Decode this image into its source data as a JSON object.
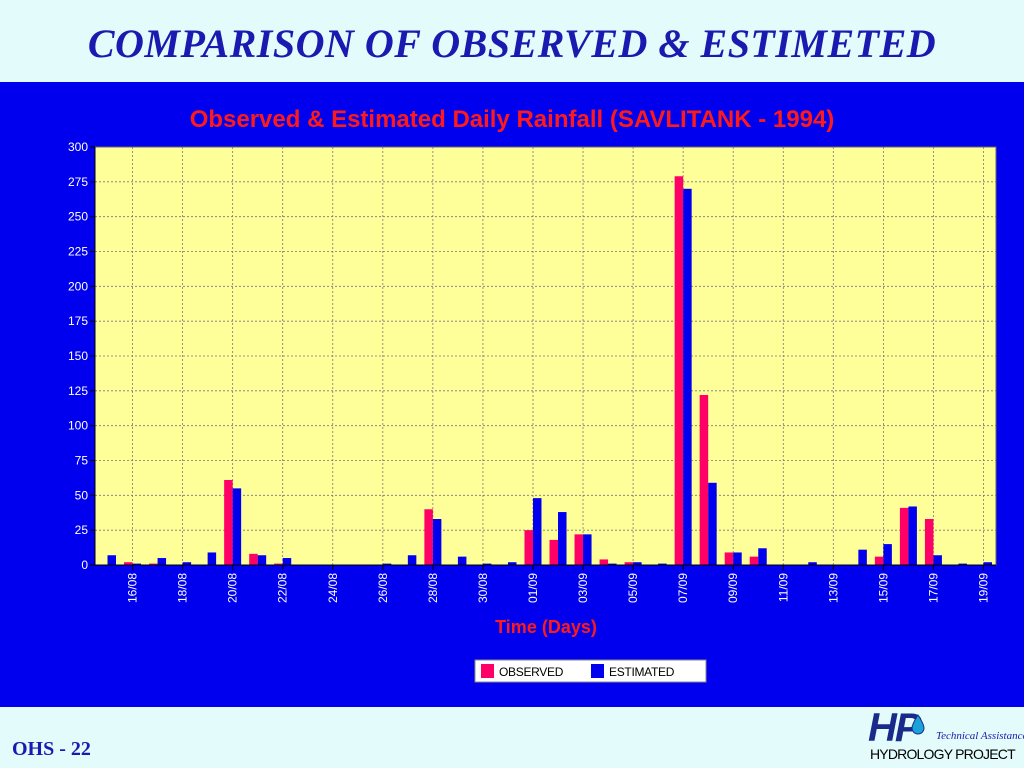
{
  "slide": {
    "title": "COMPARISON OF OBSERVED & ESTIMETED",
    "footer": "OHS - 22",
    "logo": {
      "mark": "HP",
      "tagline": "Technical Assistance",
      "name": "HYDROLOGY PROJECT"
    }
  },
  "colors": {
    "background": "#e3fbfb",
    "panel": "#0000ee",
    "plot_area": "#ffff99",
    "title_text": "#ff1a1a",
    "observed": "#ff0066",
    "estimated": "#0000ee"
  },
  "chart_data": {
    "type": "bar",
    "title": "Observed & Estimated Daily Rainfall (SAVLITANK - 1994)",
    "xlabel": "Time (Days)",
    "ylabel": "",
    "ylim": [
      0,
      300
    ],
    "yticks": [
      0,
      25,
      50,
      75,
      100,
      125,
      150,
      175,
      200,
      225,
      250,
      275,
      300
    ],
    "grid": true,
    "legend": "bottom",
    "categories": [
      "15/08",
      "16/08",
      "17/08",
      "18/08",
      "19/08",
      "20/08",
      "21/08",
      "22/08",
      "23/08",
      "24/08",
      "25/08",
      "26/08",
      "27/08",
      "28/08",
      "29/08",
      "30/08",
      "31/08",
      "01/09",
      "02/09",
      "03/09",
      "04/09",
      "05/09",
      "06/09",
      "07/09",
      "08/09",
      "09/09",
      "10/09",
      "11/09",
      "12/09",
      "13/09",
      "14/09",
      "15/09",
      "16/09",
      "17/09",
      "18/09",
      "19/09"
    ],
    "tick_labels": [
      "16/08",
      "18/08",
      "20/08",
      "22/08",
      "24/08",
      "26/08",
      "28/08",
      "30/08",
      "01/09",
      "03/09",
      "05/09",
      "07/09",
      "09/09",
      "11/09",
      "13/09",
      "15/09",
      "17/09",
      "19/09"
    ],
    "series": [
      {
        "name": "OBSERVED",
        "values": [
          0,
          2,
          1,
          0,
          0,
          61,
          8,
          1,
          0,
          0,
          0,
          0,
          0,
          40,
          0,
          0,
          0,
          25,
          18,
          22,
          4,
          2,
          0,
          279,
          122,
          9,
          6,
          0,
          0,
          0,
          0,
          6,
          41,
          33,
          0,
          0
        ]
      },
      {
        "name": "ESTIMATED",
        "values": [
          7,
          1,
          5,
          2,
          9,
          55,
          7,
          5,
          0,
          0,
          0,
          1,
          7,
          33,
          6,
          1,
          2,
          48,
          38,
          22,
          1,
          2,
          1,
          270,
          59,
          9,
          12,
          0,
          2,
          0,
          11,
          15,
          42,
          7,
          1,
          2
        ]
      }
    ]
  }
}
